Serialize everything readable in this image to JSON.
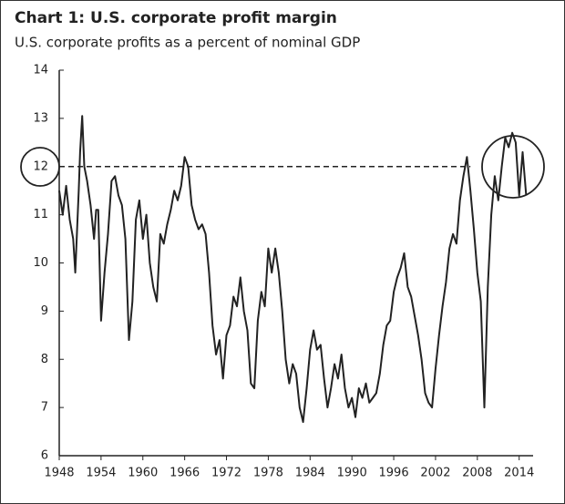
{
  "chart_data": {
    "type": "line",
    "title": "Chart 1: U.S. corporate profit margin",
    "subtitle": "U.S. corporate profits as a percent of nominal GDP",
    "x": [
      1948,
      1948.5,
      1949,
      1949.5,
      1950,
      1950.3,
      1950.8,
      1951,
      1951.3,
      1951.6,
      1952,
      1952.5,
      1953,
      1953.3,
      1953.6,
      1954,
      1954.5,
      1955,
      1955.5,
      1956,
      1956.5,
      1957,
      1957.5,
      1958,
      1958.5,
      1959,
      1959.5,
      1960,
      1960.5,
      1961,
      1961.5,
      1962,
      1962.5,
      1963,
      1963.5,
      1964,
      1964.5,
      1965,
      1965.5,
      1966,
      1966.5,
      1967,
      1967.5,
      1968,
      1968.5,
      1969,
      1969.5,
      1970,
      1970.5,
      1971,
      1971.5,
      1972,
      1972.5,
      1973,
      1973.5,
      1974,
      1974.5,
      1975,
      1975.5,
      1976,
      1976.5,
      1977,
      1977.5,
      1978,
      1978.5,
      1979,
      1979.5,
      1980,
      1980.5,
      1981,
      1981.5,
      1982,
      1982.5,
      1983,
      1983.5,
      1984,
      1984.5,
      1985,
      1985.5,
      1986,
      1986.5,
      1987,
      1987.5,
      1988,
      1988.5,
      1989,
      1989.5,
      1990,
      1990.5,
      1991,
      1991.5,
      1992,
      1992.5,
      1993,
      1993.5,
      1994,
      1994.5,
      1995,
      1995.5,
      1996,
      1996.5,
      1997,
      1997.5,
      1998,
      1998.5,
      1999,
      1999.5,
      2000,
      2000.5,
      2001,
      2001.5,
      2002,
      2002.5,
      2003,
      2003.5,
      2004,
      2004.5,
      2005,
      2005.5,
      2006,
      2006.5,
      2007,
      2007.5,
      2008,
      2008.5,
      2009,
      2009.5,
      2010,
      2010.5,
      2011,
      2011.5,
      2012,
      2012.5,
      2013,
      2013.5,
      2014,
      2014.5,
      2015
    ],
    "series": [
      {
        "name": "U.S. corporate profit margin",
        "color": "#222222",
        "values": [
          11.5,
          11.0,
          11.6,
          10.9,
          10.5,
          9.8,
          11.5,
          12.3,
          13.05,
          12.0,
          11.7,
          11.2,
          10.5,
          11.1,
          11.1,
          8.8,
          9.8,
          10.6,
          11.7,
          11.8,
          11.4,
          11.2,
          10.5,
          8.4,
          9.2,
          10.9,
          11.3,
          10.5,
          11.0,
          10.0,
          9.5,
          9.2,
          10.6,
          10.4,
          10.8,
          11.1,
          11.5,
          11.3,
          11.6,
          12.2,
          12.0,
          11.2,
          10.9,
          10.7,
          10.8,
          10.6,
          9.8,
          8.7,
          8.1,
          8.4,
          7.6,
          8.5,
          8.7,
          9.3,
          9.1,
          9.7,
          9.0,
          8.6,
          7.5,
          7.4,
          8.8,
          9.4,
          9.1,
          10.3,
          9.8,
          10.3,
          9.8,
          9.0,
          8.0,
          7.5,
          7.9,
          7.7,
          7.0,
          6.7,
          7.4,
          8.2,
          8.6,
          8.2,
          8.3,
          7.6,
          7.0,
          7.4,
          7.9,
          7.6,
          8.1,
          7.4,
          7.0,
          7.2,
          6.8,
          7.4,
          7.2,
          7.5,
          7.1,
          7.2,
          7.3,
          7.7,
          8.3,
          8.7,
          8.8,
          9.4,
          9.7,
          9.9,
          10.2,
          9.5,
          9.3,
          8.9,
          8.5,
          8.0,
          7.3,
          7.1,
          7.0,
          7.8,
          8.5,
          9.1,
          9.6,
          10.3,
          10.6,
          10.4,
          11.3,
          11.8,
          12.2,
          11.5,
          10.7,
          9.8,
          9.2,
          7.0,
          9.5,
          11.0,
          11.8,
          11.3,
          12.0,
          12.6,
          12.4,
          12.7,
          12.5,
          11.4,
          12.3,
          11.4
        ]
      }
    ],
    "reference_line": {
      "value": 12,
      "x_end": 2007
    },
    "xlim": [
      1948,
      2016
    ],
    "xticks": [
      1948,
      1954,
      1960,
      1966,
      1972,
      1978,
      1984,
      1990,
      1996,
      2002,
      2008,
      2014
    ],
    "ylim": [
      6,
      14
    ],
    "yticks": [
      6,
      7,
      8,
      9,
      10,
      11,
      12,
      13,
      14
    ]
  }
}
